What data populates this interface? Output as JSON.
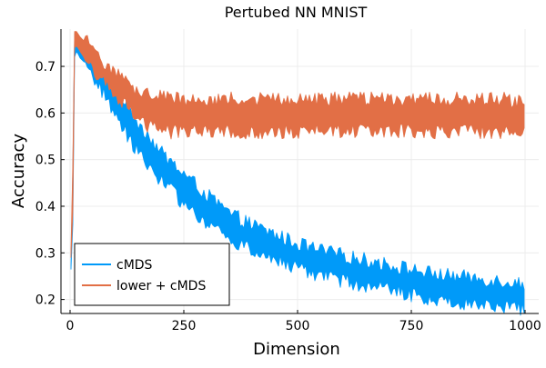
{
  "chart_data": {
    "type": "area",
    "title": "Pertubed NN MNIST",
    "xlabel": "Dimension",
    "ylabel": "Accuracy",
    "xlim": [
      -20,
      1030
    ],
    "ylim": [
      0.17,
      0.78
    ],
    "xticks": [
      0,
      250,
      500,
      750,
      1000
    ],
    "yticks": [
      0.2,
      0.3,
      0.4,
      0.5,
      0.6,
      0.7
    ],
    "xtick_labels": [
      "0",
      "250",
      "500",
      "750",
      "1000"
    ],
    "ytick_labels": [
      "0.2",
      "0.3",
      "0.4",
      "0.5",
      "0.6",
      "0.7"
    ],
    "grid": true,
    "legend_position": "bottom-left",
    "x": [
      2,
      5,
      10,
      15,
      20,
      30,
      40,
      50,
      60,
      75,
      100,
      125,
      150,
      175,
      200,
      250,
      300,
      350,
      400,
      450,
      500,
      550,
      600,
      650,
      700,
      750,
      800,
      850,
      900,
      950,
      1000
    ],
    "series": [
      {
        "name": "cMDS",
        "color": "#009af9",
        "lower": [
          0.265,
          0.27,
          0.72,
          0.735,
          0.72,
          0.71,
          0.695,
          0.68,
          0.665,
          0.645,
          0.6,
          0.56,
          0.52,
          0.49,
          0.46,
          0.41,
          0.37,
          0.335,
          0.31,
          0.29,
          0.27,
          0.255,
          0.245,
          0.235,
          0.225,
          0.215,
          0.205,
          0.2,
          0.195,
          0.19,
          0.185
        ],
        "upper": [
          0.275,
          0.4,
          0.77,
          0.77,
          0.76,
          0.745,
          0.725,
          0.71,
          0.695,
          0.68,
          0.655,
          0.615,
          0.575,
          0.545,
          0.51,
          0.465,
          0.42,
          0.38,
          0.355,
          0.335,
          0.315,
          0.3,
          0.29,
          0.28,
          0.27,
          0.26,
          0.25,
          0.245,
          0.24,
          0.235,
          0.23
        ]
      },
      {
        "name": "lower + cMDS",
        "color": "#e26f46",
        "lower": [
          0.29,
          0.3,
          0.74,
          0.745,
          0.735,
          0.72,
          0.71,
          0.7,
          0.685,
          0.67,
          0.645,
          0.615,
          0.595,
          0.575,
          0.565,
          0.565,
          0.565,
          0.565,
          0.565,
          0.565,
          0.565,
          0.565,
          0.565,
          0.565,
          0.565,
          0.565,
          0.565,
          0.565,
          0.565,
          0.565,
          0.565
        ],
        "upper": [
          0.31,
          0.42,
          0.775,
          0.775,
          0.765,
          0.755,
          0.745,
          0.73,
          0.715,
          0.705,
          0.685,
          0.66,
          0.645,
          0.635,
          0.63,
          0.625,
          0.625,
          0.625,
          0.625,
          0.625,
          0.625,
          0.625,
          0.625,
          0.625,
          0.625,
          0.625,
          0.625,
          0.625,
          0.625,
          0.625,
          0.615
        ]
      }
    ]
  }
}
